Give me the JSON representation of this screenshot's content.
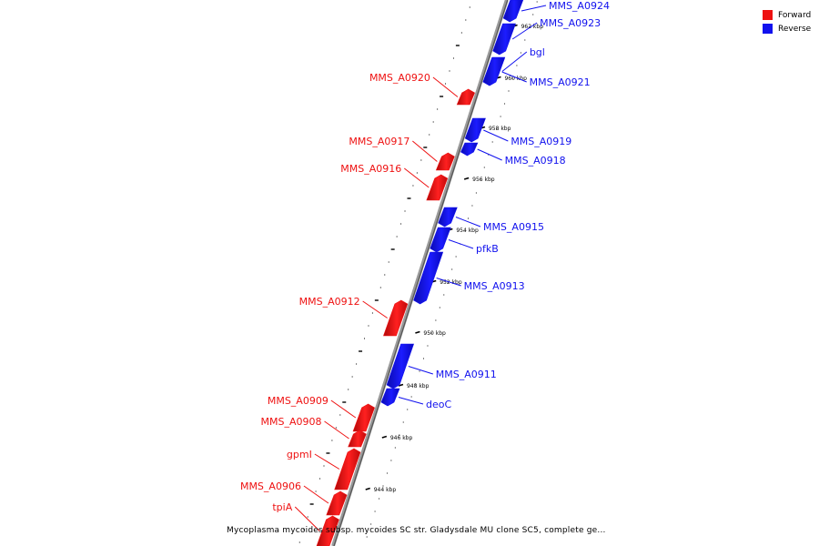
{
  "caption": "Mycoplasma mycoides subsp. mycoides SC str. Gladysdale MU clone SC5, complete ge...",
  "legend": [
    {
      "label": "Forward",
      "color": "#ee1111"
    },
    {
      "label": "Reverse",
      "color": "#1111ee"
    }
  ],
  "colors": {
    "forward": "#ee1111",
    "reverse": "#1111ee",
    "backbone": "#888888"
  },
  "coordinate_labels": [
    {
      "text": "962 kbp",
      "kbp": 962
    },
    {
      "text": "960 kbp",
      "kbp": 960
    },
    {
      "text": "958 kbp",
      "kbp": 958
    },
    {
      "text": "956 kbp",
      "kbp": 956
    },
    {
      "text": "954 kbp",
      "kbp": 954
    },
    {
      "text": "952 kbp",
      "kbp": 952
    },
    {
      "text": "950 kbp",
      "kbp": 950
    },
    {
      "text": "948 kbp",
      "kbp": 948
    },
    {
      "text": "946 kbp",
      "kbp": 946
    },
    {
      "text": "944 kbp",
      "kbp": 944
    }
  ],
  "genes": [
    {
      "name": "MMS_A0924",
      "strand": "reverse"
    },
    {
      "name": "MMS_A0923",
      "strand": "reverse"
    },
    {
      "name": "bgl",
      "strand": "reverse"
    },
    {
      "name": "MMS_A0921",
      "strand": "reverse"
    },
    {
      "name": "MMS_A0920",
      "strand": "forward"
    },
    {
      "name": "MMS_A0919",
      "strand": "reverse"
    },
    {
      "name": "MMS_A0918",
      "strand": "reverse"
    },
    {
      "name": "MMS_A0917",
      "strand": "forward"
    },
    {
      "name": "MMS_A0916",
      "strand": "forward"
    },
    {
      "name": "MMS_A0915",
      "strand": "reverse"
    },
    {
      "name": "pfkB",
      "strand": "reverse"
    },
    {
      "name": "MMS_A0913",
      "strand": "reverse"
    },
    {
      "name": "MMS_A0912",
      "strand": "forward"
    },
    {
      "name": "MMS_A0911",
      "strand": "reverse"
    },
    {
      "name": "deoC",
      "strand": "reverse"
    },
    {
      "name": "MMS_A0909",
      "strand": "forward"
    },
    {
      "name": "MMS_A0908",
      "strand": "forward"
    },
    {
      "name": "gpmI",
      "strand": "forward"
    },
    {
      "name": "MMS_A0906",
      "strand": "forward"
    },
    {
      "name": "tpiA",
      "strand": "forward"
    }
  ]
}
